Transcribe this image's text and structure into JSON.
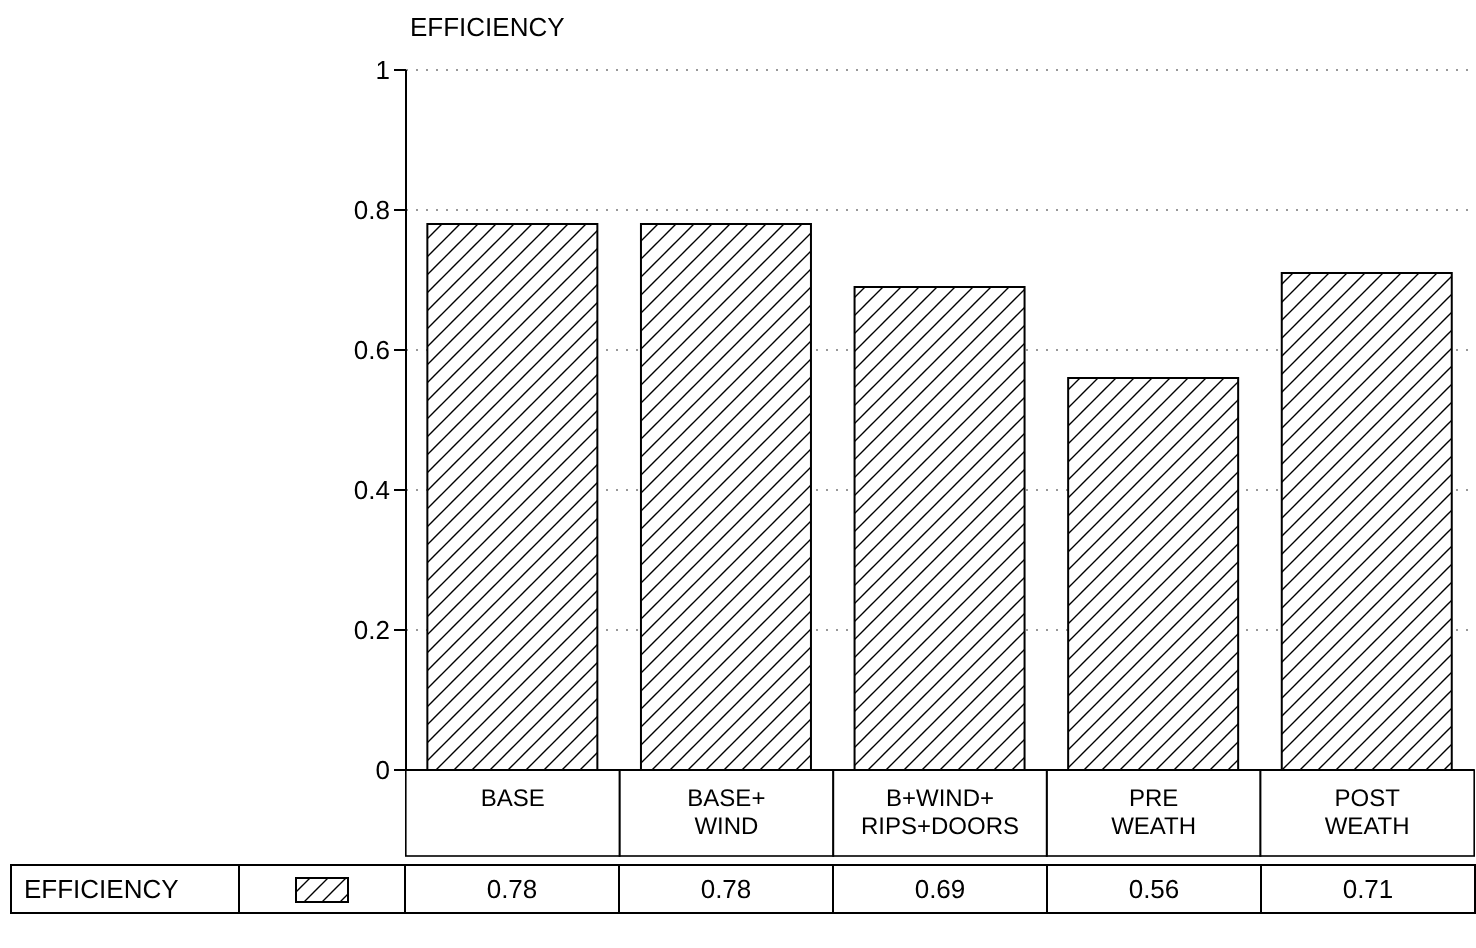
{
  "chart_data": {
    "type": "bar",
    "ylabel": "EFFICIENCY",
    "categories": [
      "BASE",
      "BASE+\nWIND",
      "B+WIND+\nRIPS+DOORS",
      "PRE\nWEATH",
      "POST\nWEATH"
    ],
    "series": [
      {
        "name": "EFFICIENCY",
        "color": "#000000",
        "values": [
          0.78,
          0.78,
          0.69,
          0.56,
          0.71
        ]
      }
    ],
    "ylim": [
      0,
      1
    ],
    "yticks": [
      0,
      0.2,
      0.4,
      0.6,
      0.8,
      1
    ],
    "grid": "y",
    "legend": "bottom",
    "data_labels": true
  }
}
